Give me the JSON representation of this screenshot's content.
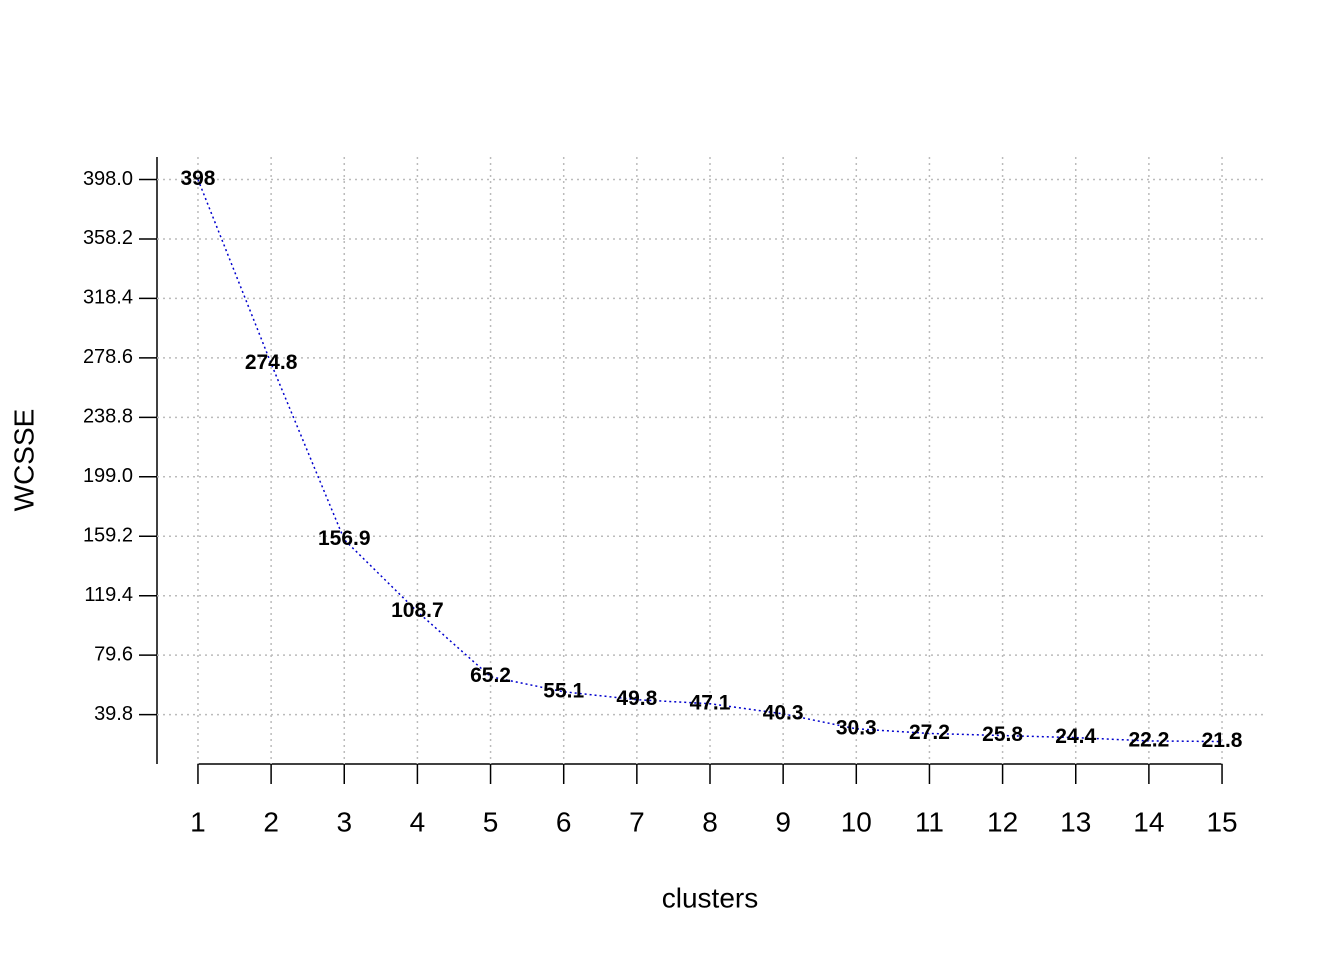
{
  "chart_data": {
    "type": "line",
    "xlabel": "clusters",
    "ylabel": "WCSSE",
    "x": [
      1,
      2,
      3,
      4,
      5,
      6,
      7,
      8,
      9,
      10,
      11,
      12,
      13,
      14,
      15
    ],
    "series": [
      {
        "color": "#0000cd",
        "values": [
          398,
          274.8,
          156.9,
          108.7,
          65.2,
          55.1,
          49.8,
          47.1,
          40.3,
          30.3,
          27.2,
          25.8,
          24.4,
          22.2,
          21.8
        ]
      }
    ],
    "xlim": [
      0.44,
      15.56
    ],
    "xticks": [
      1,
      2,
      3,
      4,
      5,
      6,
      7,
      8,
      9,
      10,
      11,
      12,
      13,
      14,
      15
    ],
    "ylim": [
      6.75,
      413.05
    ],
    "yticks": [
      39.8,
      79.6,
      119.4,
      159.2,
      {
        "value": 199,
        "label": "199.0"
      },
      238.8,
      278.6,
      318.4,
      358.2,
      {
        "value": 398,
        "label": "398.0"
      }
    ],
    "grid": true
  }
}
